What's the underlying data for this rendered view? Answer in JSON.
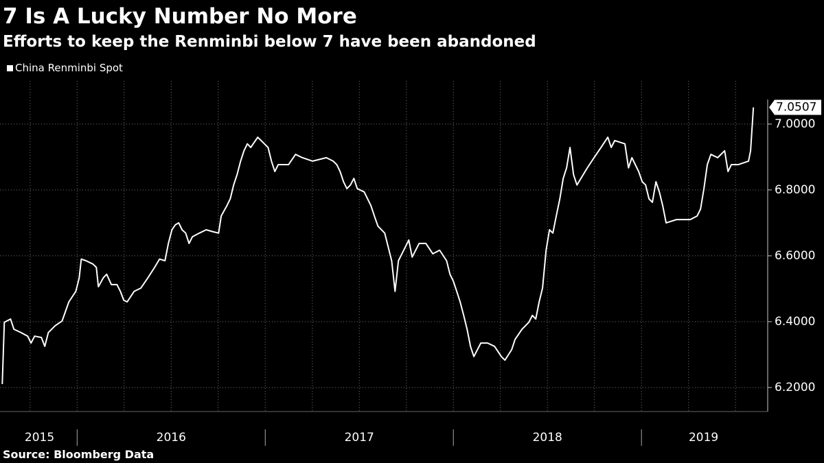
{
  "chart_data": {
    "type": "line",
    "title": "7 Is A Lucky Number No More",
    "subtitle": "Efforts to keep the Renminbi below 7 have been abandoned",
    "source": "Source: Bloomberg Data",
    "x": [
      2015.602,
      2015.613,
      2015.646,
      2015.664,
      2015.701,
      2015.737,
      2015.755,
      2015.774,
      2015.81,
      2015.828,
      2015.847,
      2015.883,
      2015.92,
      2015.956,
      2015.993,
      2016.011,
      2016.022,
      2016.047,
      2016.084,
      2016.102,
      2016.113,
      2016.139,
      2016.157,
      2016.182,
      2016.212,
      2016.23,
      2016.248,
      2016.266,
      2016.303,
      2016.339,
      2016.376,
      2016.412,
      2016.438,
      2016.467,
      2016.485,
      2016.504,
      2016.522,
      2016.54,
      2016.558,
      2016.577,
      2016.595,
      2016.613,
      2016.65,
      2016.686,
      2016.723,
      2016.752,
      2016.766,
      2016.796,
      2016.814,
      2016.832,
      2016.85,
      2016.869,
      2016.887,
      2016.905,
      2016.923,
      2016.96,
      2016.978,
      2017.015,
      2017.033,
      2017.051,
      2017.069,
      2017.124,
      2017.161,
      2017.197,
      2017.252,
      2017.325,
      2017.361,
      2017.38,
      2017.398,
      2017.416,
      2017.434,
      2017.453,
      2017.471,
      2017.489,
      2017.526,
      2017.562,
      2017.58,
      2017.599,
      2017.635,
      2017.672,
      2017.69,
      2017.708,
      2017.745,
      2017.763,
      2017.781,
      2017.818,
      2017.854,
      2017.891,
      2017.927,
      2017.964,
      2017.982,
      2018.0,
      2018.018,
      2018.036,
      2018.055,
      2018.073,
      2018.091,
      2018.109,
      2018.146,
      2018.182,
      2018.219,
      2018.255,
      2018.274,
      2018.31,
      2018.328,
      2018.365,
      2018.401,
      2018.42,
      2018.438,
      2018.456,
      2018.474,
      2018.493,
      2018.511,
      2018.529,
      2018.547,
      2018.566,
      2018.584,
      2018.602,
      2018.62,
      2018.639,
      2018.657,
      2018.712,
      2018.748,
      2018.785,
      2018.821,
      2018.839,
      2018.858,
      2018.912,
      2018.931,
      2018.949,
      2018.985,
      2019.004,
      2019.022,
      2019.04,
      2019.058,
      2019.077,
      2019.095,
      2019.113,
      2019.131,
      2019.186,
      2019.259,
      2019.296,
      2019.314,
      2019.332,
      2019.35,
      2019.369,
      2019.405,
      2019.442,
      2019.46,
      2019.478,
      2019.515,
      2019.569,
      2019.58,
      2019.595
    ],
    "series": [
      {
        "name": "China Renminbi Spot",
        "color": "#ffffff",
        "values": [
          6.2104,
          6.398,
          6.408,
          6.377,
          6.367,
          6.356,
          6.335,
          6.356,
          6.352,
          6.325,
          6.367,
          6.3875,
          6.402,
          6.46,
          6.492,
          6.533,
          6.59,
          6.585,
          6.575,
          6.565,
          6.506,
          6.533,
          6.544,
          6.5125,
          6.5125,
          6.492,
          6.465,
          6.46,
          6.492,
          6.502,
          6.533,
          6.565,
          6.59,
          6.585,
          6.6375,
          6.679,
          6.694,
          6.7,
          6.679,
          6.669,
          6.6375,
          6.658,
          6.669,
          6.679,
          6.673,
          6.669,
          6.721,
          6.752,
          6.773,
          6.815,
          6.846,
          6.8875,
          6.919,
          6.94,
          6.929,
          6.96,
          6.95,
          6.929,
          6.8875,
          6.856,
          6.877,
          6.877,
          6.908,
          6.898,
          6.8875,
          6.898,
          6.8875,
          6.877,
          6.856,
          6.825,
          6.804,
          6.815,
          6.835,
          6.804,
          6.794,
          6.752,
          6.721,
          6.69,
          6.669,
          6.585,
          6.492,
          6.585,
          6.627,
          6.648,
          6.596,
          6.6375,
          6.6375,
          6.606,
          6.617,
          6.585,
          6.544,
          6.523,
          6.492,
          6.46,
          6.419,
          6.377,
          6.325,
          6.294,
          6.335,
          6.335,
          6.325,
          6.294,
          6.283,
          6.315,
          6.346,
          6.377,
          6.398,
          6.419,
          6.408,
          6.46,
          6.502,
          6.617,
          6.679,
          6.669,
          6.721,
          6.773,
          6.835,
          6.867,
          6.929,
          6.846,
          6.815,
          6.867,
          6.898,
          6.929,
          6.96,
          6.929,
          6.95,
          6.94,
          6.867,
          6.898,
          6.856,
          6.825,
          6.815,
          6.773,
          6.7625,
          6.825,
          6.794,
          6.752,
          6.7,
          6.71,
          6.71,
          6.721,
          6.742,
          6.804,
          6.877,
          6.908,
          6.898,
          6.919,
          6.856,
          6.877,
          6.877,
          6.8875,
          6.919,
          7.0507
        ]
      }
    ],
    "xlim": [
      2015.59,
      2019.66
    ],
    "xticks": [
      {
        "value": 2015.8,
        "label": "2015"
      },
      {
        "value": 2016.5,
        "label": "2016"
      },
      {
        "value": 2017.5,
        "label": "2017"
      },
      {
        "value": 2018.5,
        "label": "2018"
      },
      {
        "value": 2019.33,
        "label": "2019"
      }
    ],
    "xgrid": [
      2015.75,
      2016,
      2016.25,
      2016.5,
      2016.75,
      2017,
      2017.25,
      2017.5,
      2017.75,
      2018,
      2018.25,
      2018.5,
      2018.75,
      2019,
      2019.25,
      2019.5
    ],
    "ylim": [
      6.127,
      7.131
    ],
    "yticks": [
      {
        "value": 6.2,
        "label": "6.2000"
      },
      {
        "value": 6.4,
        "label": "6.4000"
      },
      {
        "value": 6.6,
        "label": "6.6000"
      },
      {
        "value": 6.8,
        "label": "6.8000"
      },
      {
        "value": 7.0,
        "label": "7.0000"
      }
    ],
    "grid": true
  }
}
